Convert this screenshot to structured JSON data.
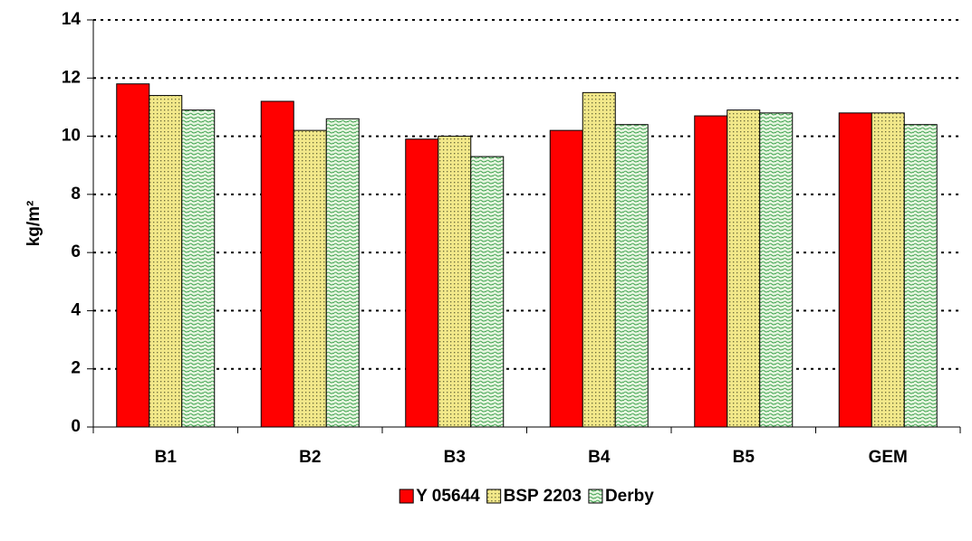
{
  "chart_data": {
    "type": "bar",
    "y_label": "kg/m²",
    "categories": [
      "B1",
      "B2",
      "B3",
      "B4",
      "B5",
      "GEM"
    ],
    "series": [
      {
        "name": "Y 05644",
        "color": "#ff0000",
        "pattern": "solid",
        "values": [
          11.8,
          11.2,
          9.9,
          10.2,
          10.7,
          10.8
        ]
      },
      {
        "name": "BSP 2203",
        "color": "#f2e88a",
        "pattern": "dots",
        "values": [
          11.4,
          10.2,
          10.0,
          11.5,
          10.9,
          10.8
        ]
      },
      {
        "name": "Derby",
        "color": "#e6f5e0",
        "pattern": "waves",
        "values": [
          10.9,
          10.6,
          9.3,
          10.4,
          10.8,
          10.4
        ]
      }
    ],
    "ylim": [
      0,
      14
    ],
    "yticks": [
      0,
      2,
      4,
      6,
      8,
      10,
      12,
      14
    ],
    "grid": true,
    "legend": "bottom"
  }
}
